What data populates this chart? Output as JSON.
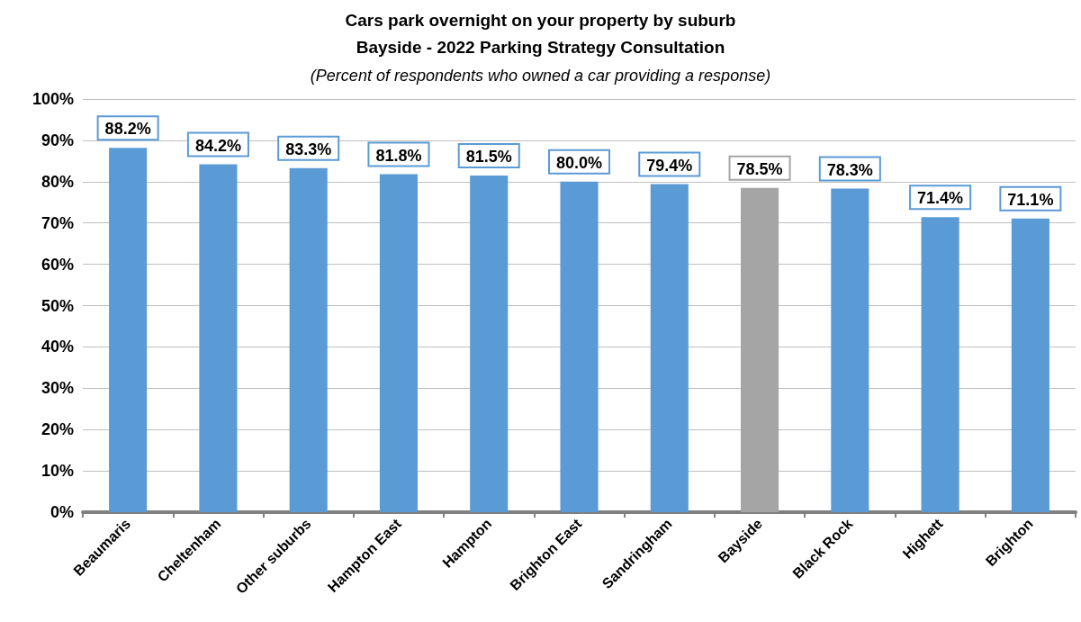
{
  "chart_data": {
    "type": "bar",
    "title": "Cars park overnight on your property by suburb",
    "subtitle": "Bayside - 2022 Parking Strategy Consultation",
    "annotations": [
      "(Percent of respondents who owned a car providing a response)"
    ],
    "categories": [
      "Beaumaris",
      "Cheltenham",
      "Other suburbs",
      "Hampton East",
      "Hampton",
      "Brighton East",
      "Sandringham",
      "Bayside",
      "Black Rock",
      "Highett",
      "Brighton"
    ],
    "values": [
      88.2,
      84.2,
      83.3,
      81.8,
      81.5,
      80.0,
      79.4,
      78.5,
      78.3,
      71.4,
      71.1
    ],
    "value_labels": [
      "88.2%",
      "84.2%",
      "83.3%",
      "81.8%",
      "81.5%",
      "80.0%",
      "79.4%",
      "78.5%",
      "78.3%",
      "71.4%",
      "71.1%"
    ],
    "colors": [
      "#5b9bd5",
      "#5b9bd5",
      "#5b9bd5",
      "#5b9bd5",
      "#5b9bd5",
      "#5b9bd5",
      "#5b9bd5",
      "#a5a5a5",
      "#5b9bd5",
      "#5b9bd5",
      "#5b9bd5"
    ],
    "ylim": [
      0,
      100
    ],
    "yticks": [
      {
        "value": 0,
        "label": "0%"
      },
      {
        "value": 10,
        "label": "10%"
      },
      {
        "value": 20,
        "label": "20%"
      },
      {
        "value": 30,
        "label": "30%"
      },
      {
        "value": 40,
        "label": "40%"
      },
      {
        "value": 50,
        "label": "50%"
      },
      {
        "value": 60,
        "label": "60%"
      },
      {
        "value": 70,
        "label": "70%"
      },
      {
        "value": 80,
        "label": "80%"
      },
      {
        "value": 90,
        "label": "90%"
      },
      {
        "value": 100,
        "label": "100%"
      }
    ],
    "grid": "y"
  }
}
